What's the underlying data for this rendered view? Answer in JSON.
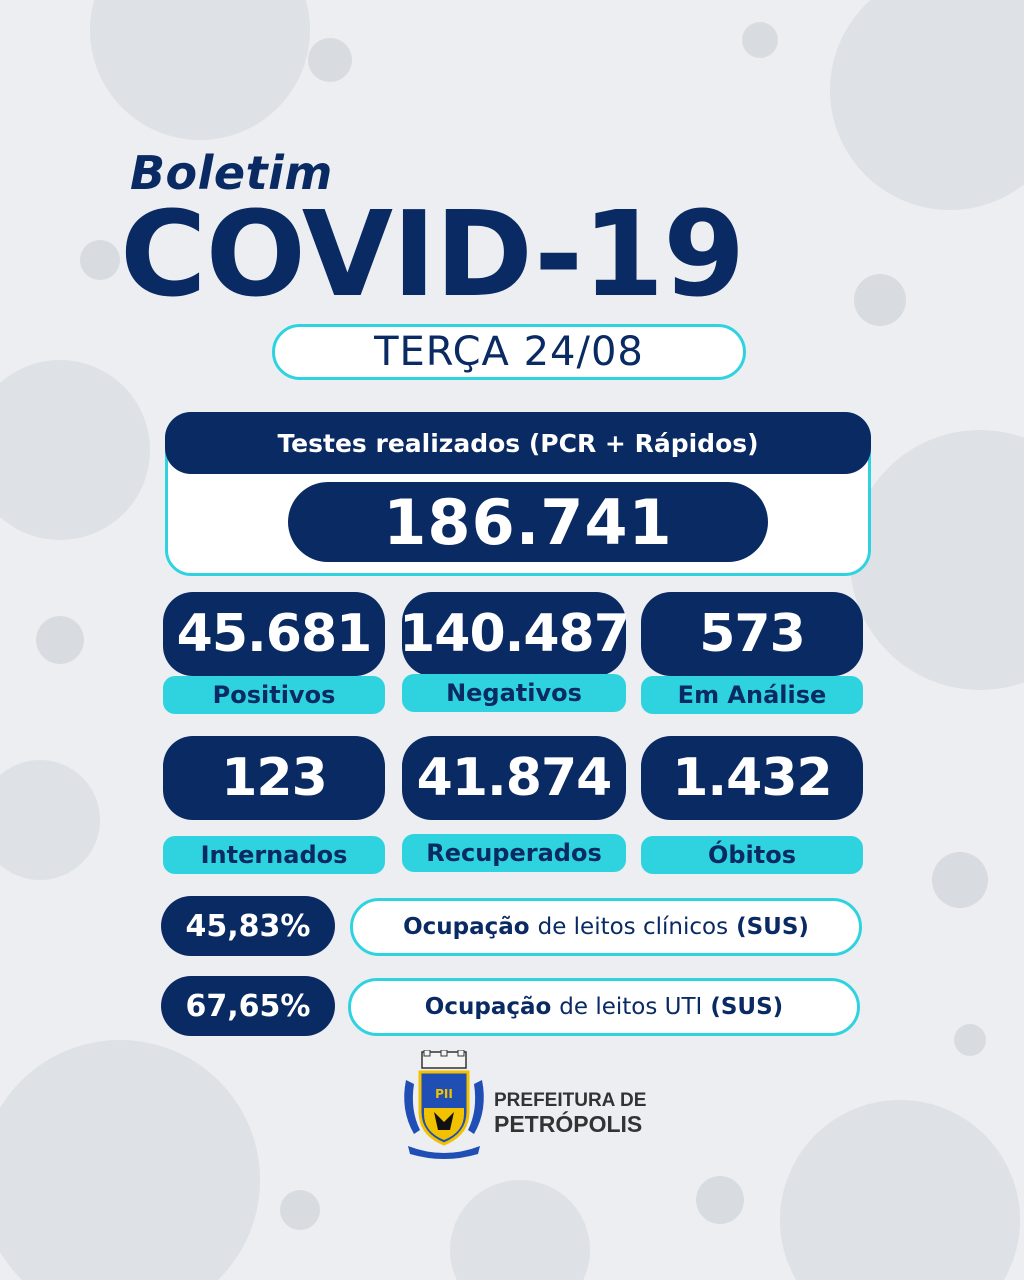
{
  "header": {
    "boletim": "Boletim",
    "title": "COVID-19",
    "date": "TERÇA 24/08"
  },
  "tests": {
    "label": "Testes realizados (PCR + Rápidos)",
    "value": "186.741"
  },
  "stats": [
    {
      "value": "45.681",
      "label": "Positivos"
    },
    {
      "value": "140.487",
      "label": "Negativos"
    },
    {
      "value": "573",
      "label": "Em Análise"
    },
    {
      "value": "123",
      "label": "Internados"
    },
    {
      "value": "41.874",
      "label": "Recuperados"
    },
    {
      "value": "1.432",
      "label": "Óbitos"
    }
  ],
  "occupancy": [
    {
      "value": "45,83%",
      "label_bold": "Ocupação",
      "label_rest": "de leitos clínicos",
      "label_tag": "(SUS)"
    },
    {
      "value": "67,65%",
      "label_bold": "Ocupação",
      "label_rest": "de leitos UTI",
      "label_tag": "(SUS)"
    }
  ],
  "footer": {
    "line1": "PREFEITURA DE",
    "line2": "PETRÓPOLIS",
    "crest_icon": "coat-of-arms-icon"
  },
  "colors": {
    "navy": "#0a2a63",
    "cyan": "#2fd3e0",
    "background": "#e9ecef"
  }
}
